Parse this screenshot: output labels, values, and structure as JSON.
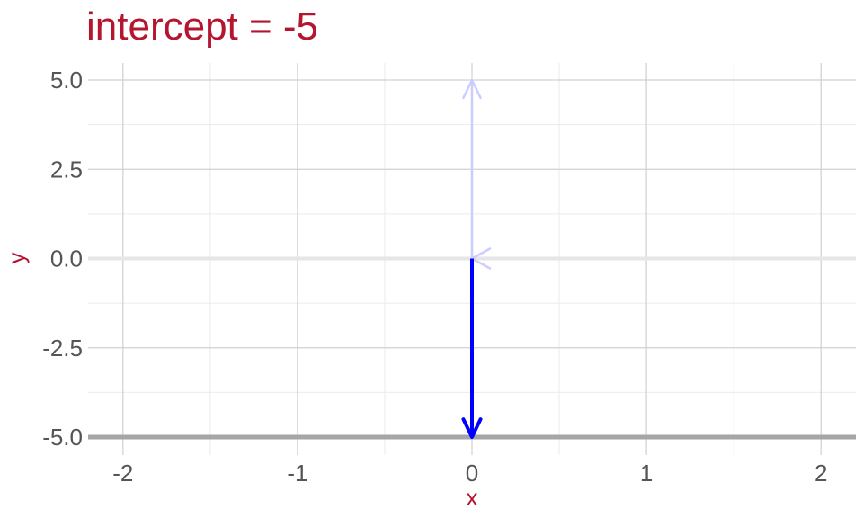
{
  "chart_data": {
    "type": "line",
    "title": "intercept = -5",
    "xlabel": "x",
    "ylabel": "y",
    "xlim": [
      -2.2,
      2.2
    ],
    "ylim": [
      -5.0,
      5.0
    ],
    "x_ticks": [
      "-2",
      "-1",
      "0",
      "1",
      "2"
    ],
    "x_tick_values": [
      -2,
      -1,
      0,
      1,
      2
    ],
    "y_ticks": [
      "5.0",
      "2.5",
      "0.0",
      "-2.5",
      "-5.0"
    ],
    "y_tick_values": [
      5.0,
      2.5,
      0.0,
      -2.5,
      -5.0
    ],
    "grid": true,
    "horizontal_line": {
      "y": -5,
      "color": "#a6a6a6"
    },
    "arrows": [
      {
        "from": [
          0,
          0
        ],
        "to": [
          0,
          5
        ],
        "color": "#ccccff",
        "role": "faded previous arrow"
      },
      {
        "from": [
          0,
          -5
        ],
        "to": [
          0,
          0
        ],
        "color": "#ccccff",
        "role": "faded arrowhead at origin"
      },
      {
        "from": [
          0,
          0
        ],
        "to": [
          0,
          -5
        ],
        "color": "#0000ff",
        "role": "current arrow"
      }
    ],
    "colors": {
      "title": "#b5162f",
      "axis_title": "#b5162f",
      "tick": "#555555",
      "grid_major": "#d0d0d0",
      "grid_minor": "#ebebeb"
    }
  }
}
